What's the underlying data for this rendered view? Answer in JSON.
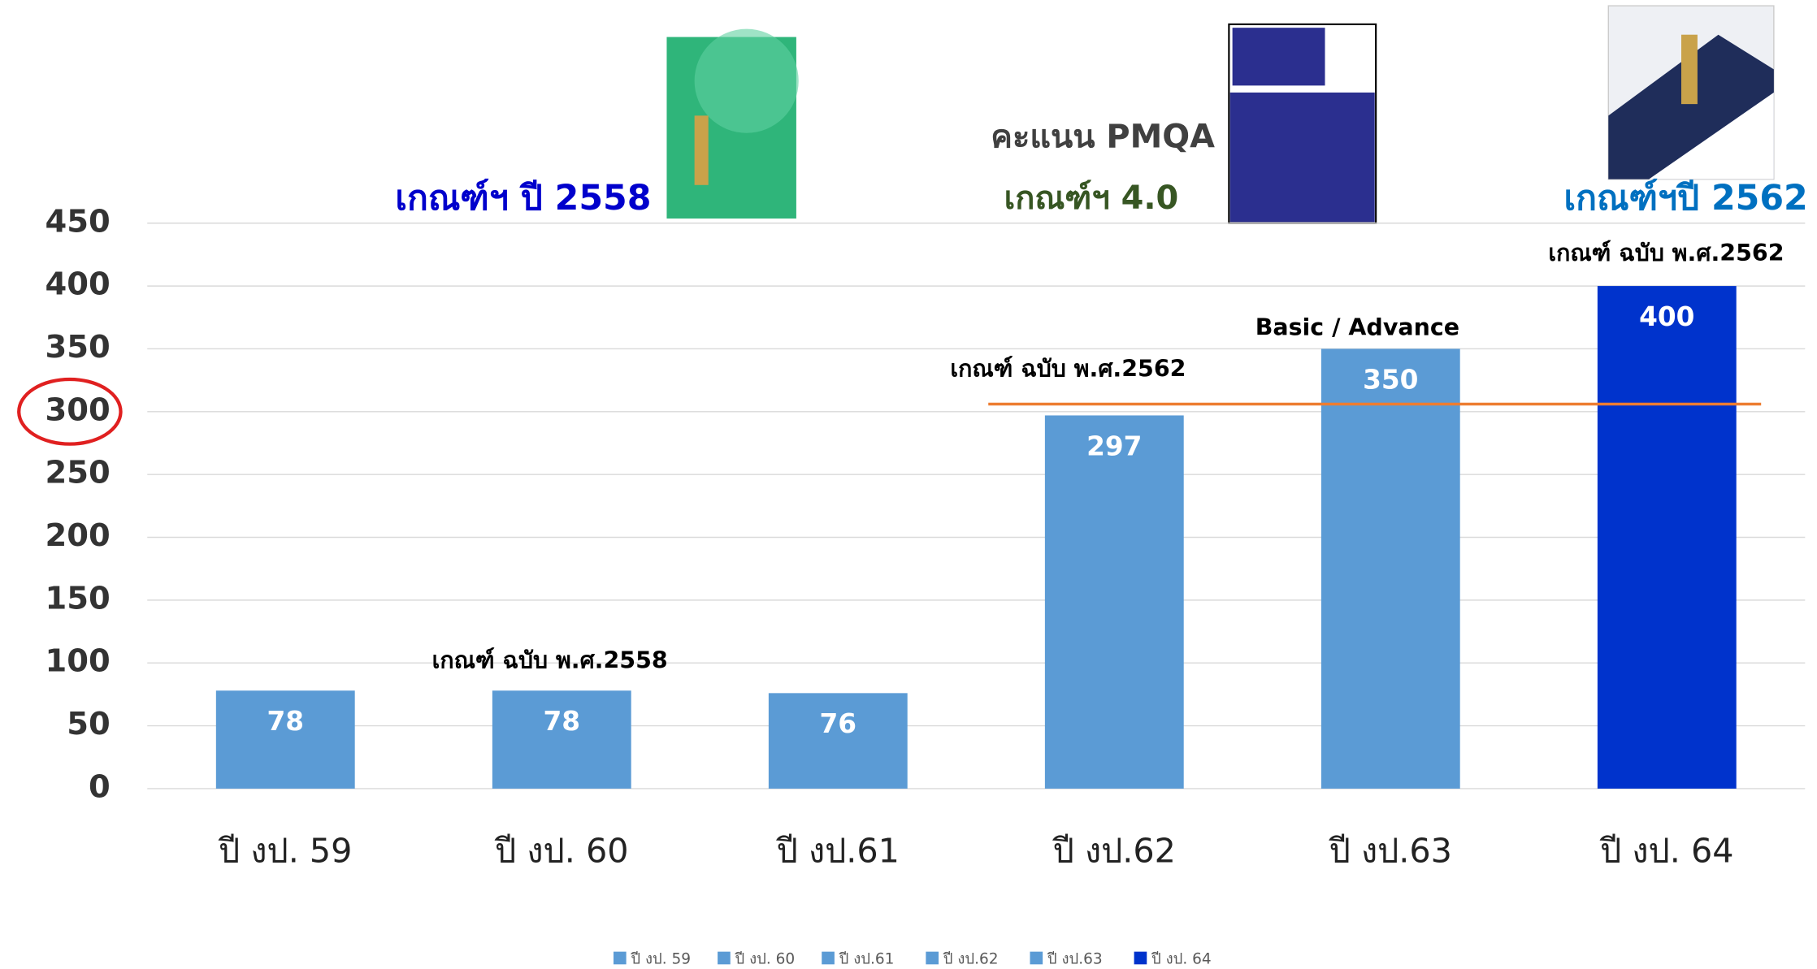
{
  "chart_data": {
    "type": "bar",
    "categories": [
      "ปี งป. 59",
      "ปี งป. 60",
      "ปี งป.61",
      "ปี งป.62",
      "ปี งป.63",
      "ปี งป. 64"
    ],
    "values": [
      78,
      78,
      76,
      297,
      350,
      400
    ],
    "colors": [
      "#5b9bd5",
      "#5b9bd5",
      "#5b9bd5",
      "#5b9bd5",
      "#5b9bd5",
      "#0033cc"
    ],
    "ylim": [
      0,
      450
    ],
    "yticks": [
      0,
      50,
      100,
      150,
      200,
      250,
      300,
      350,
      400,
      450
    ],
    "grid": true,
    "reference_line": {
      "value": 306,
      "color": "#ed7d31"
    },
    "annotations": [
      "เกณฑ์ฯ ปี 2558",
      "คะแนน PMQA",
      "เกณฑ์ฯ 4.0",
      "เกณฑ์ฯปี 2562",
      "เกณฑ์ ฉบับ พ.ศ.2562",
      "Basic  / Advance",
      "เกณฑ์ ฉบับ พ.ศ.2562",
      "เกณฑ์ ฉบับ พ.ศ.2558"
    ],
    "legend": true
  }
}
